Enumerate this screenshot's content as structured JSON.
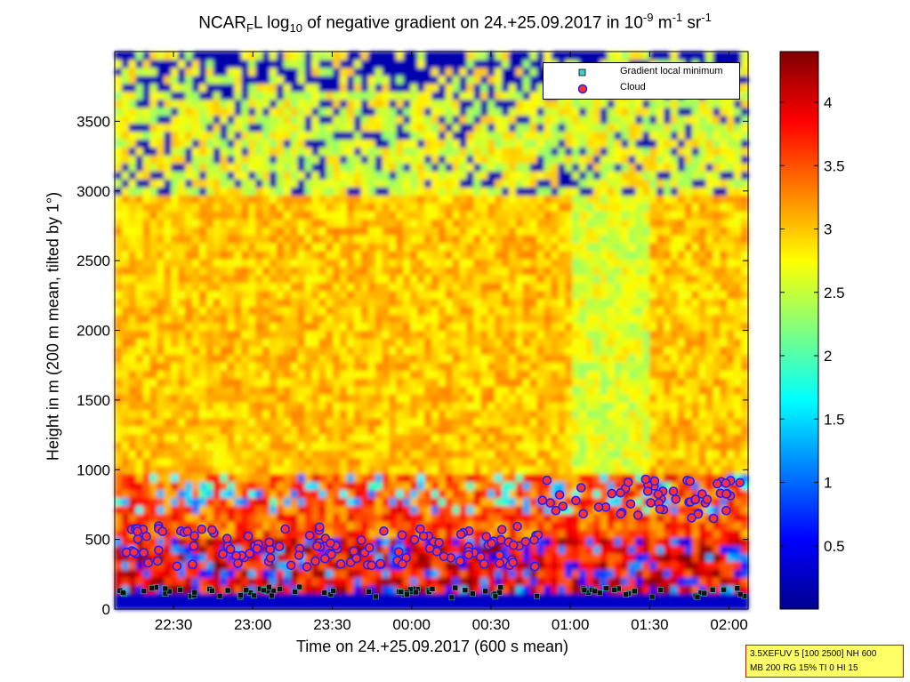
{
  "chart_data": {
    "type": "heatmap",
    "title_parts": {
      "a": "NCAR",
      "b": "F",
      "c": "L log",
      "d": "10",
      "e": " of negative gradient on 24.+25.09.2017 in 10",
      "f": "-9",
      "g": " m",
      "h": "-1",
      "i": " sr",
      "j": "-1"
    },
    "xlabel": "Time on 24.+25.09.2017 (600 s mean)",
    "ylabel": "Height in m (200 m mean, tilted by 1°)",
    "x_ticks": [
      "22:30",
      "23:00",
      "23:30",
      "00:00",
      "00:30",
      "01:00",
      "01:30",
      "02:00"
    ],
    "x_tick_hours": [
      22.5,
      23.0,
      23.5,
      24.0,
      24.5,
      25.0,
      25.5,
      26.0
    ],
    "xlim_hours": [
      22.13,
      26.12
    ],
    "y_ticks": [
      0,
      500,
      1000,
      1500,
      2000,
      2500,
      3000,
      3500
    ],
    "ylim": [
      0,
      4000
    ],
    "colorbar": {
      "ticks": [
        "0.5",
        "1",
        "1.5",
        "2",
        "2.5",
        "3",
        "3.5",
        "4"
      ],
      "tick_values": [
        0.5,
        1,
        1.5,
        2,
        2.5,
        3,
        3.5,
        4
      ],
      "range": [
        0,
        4.4
      ],
      "colormap": "jet"
    },
    "legend": [
      {
        "label": "Gradient local minimum",
        "marker": "square",
        "color": "#40d0d0"
      },
      {
        "label": "Cloud",
        "marker": "circle",
        "color": "#ff3030",
        "edge": "#2020ff"
      }
    ],
    "cloud_base_height_m_approx": 500,
    "boundary_layer_top_m_approx": 1000
  },
  "info_box": {
    "line1": "3.5XEFUV 5 [100 2500] NH 600",
    "line2": "MB 200 RG 15% TI 0 HI 15"
  }
}
